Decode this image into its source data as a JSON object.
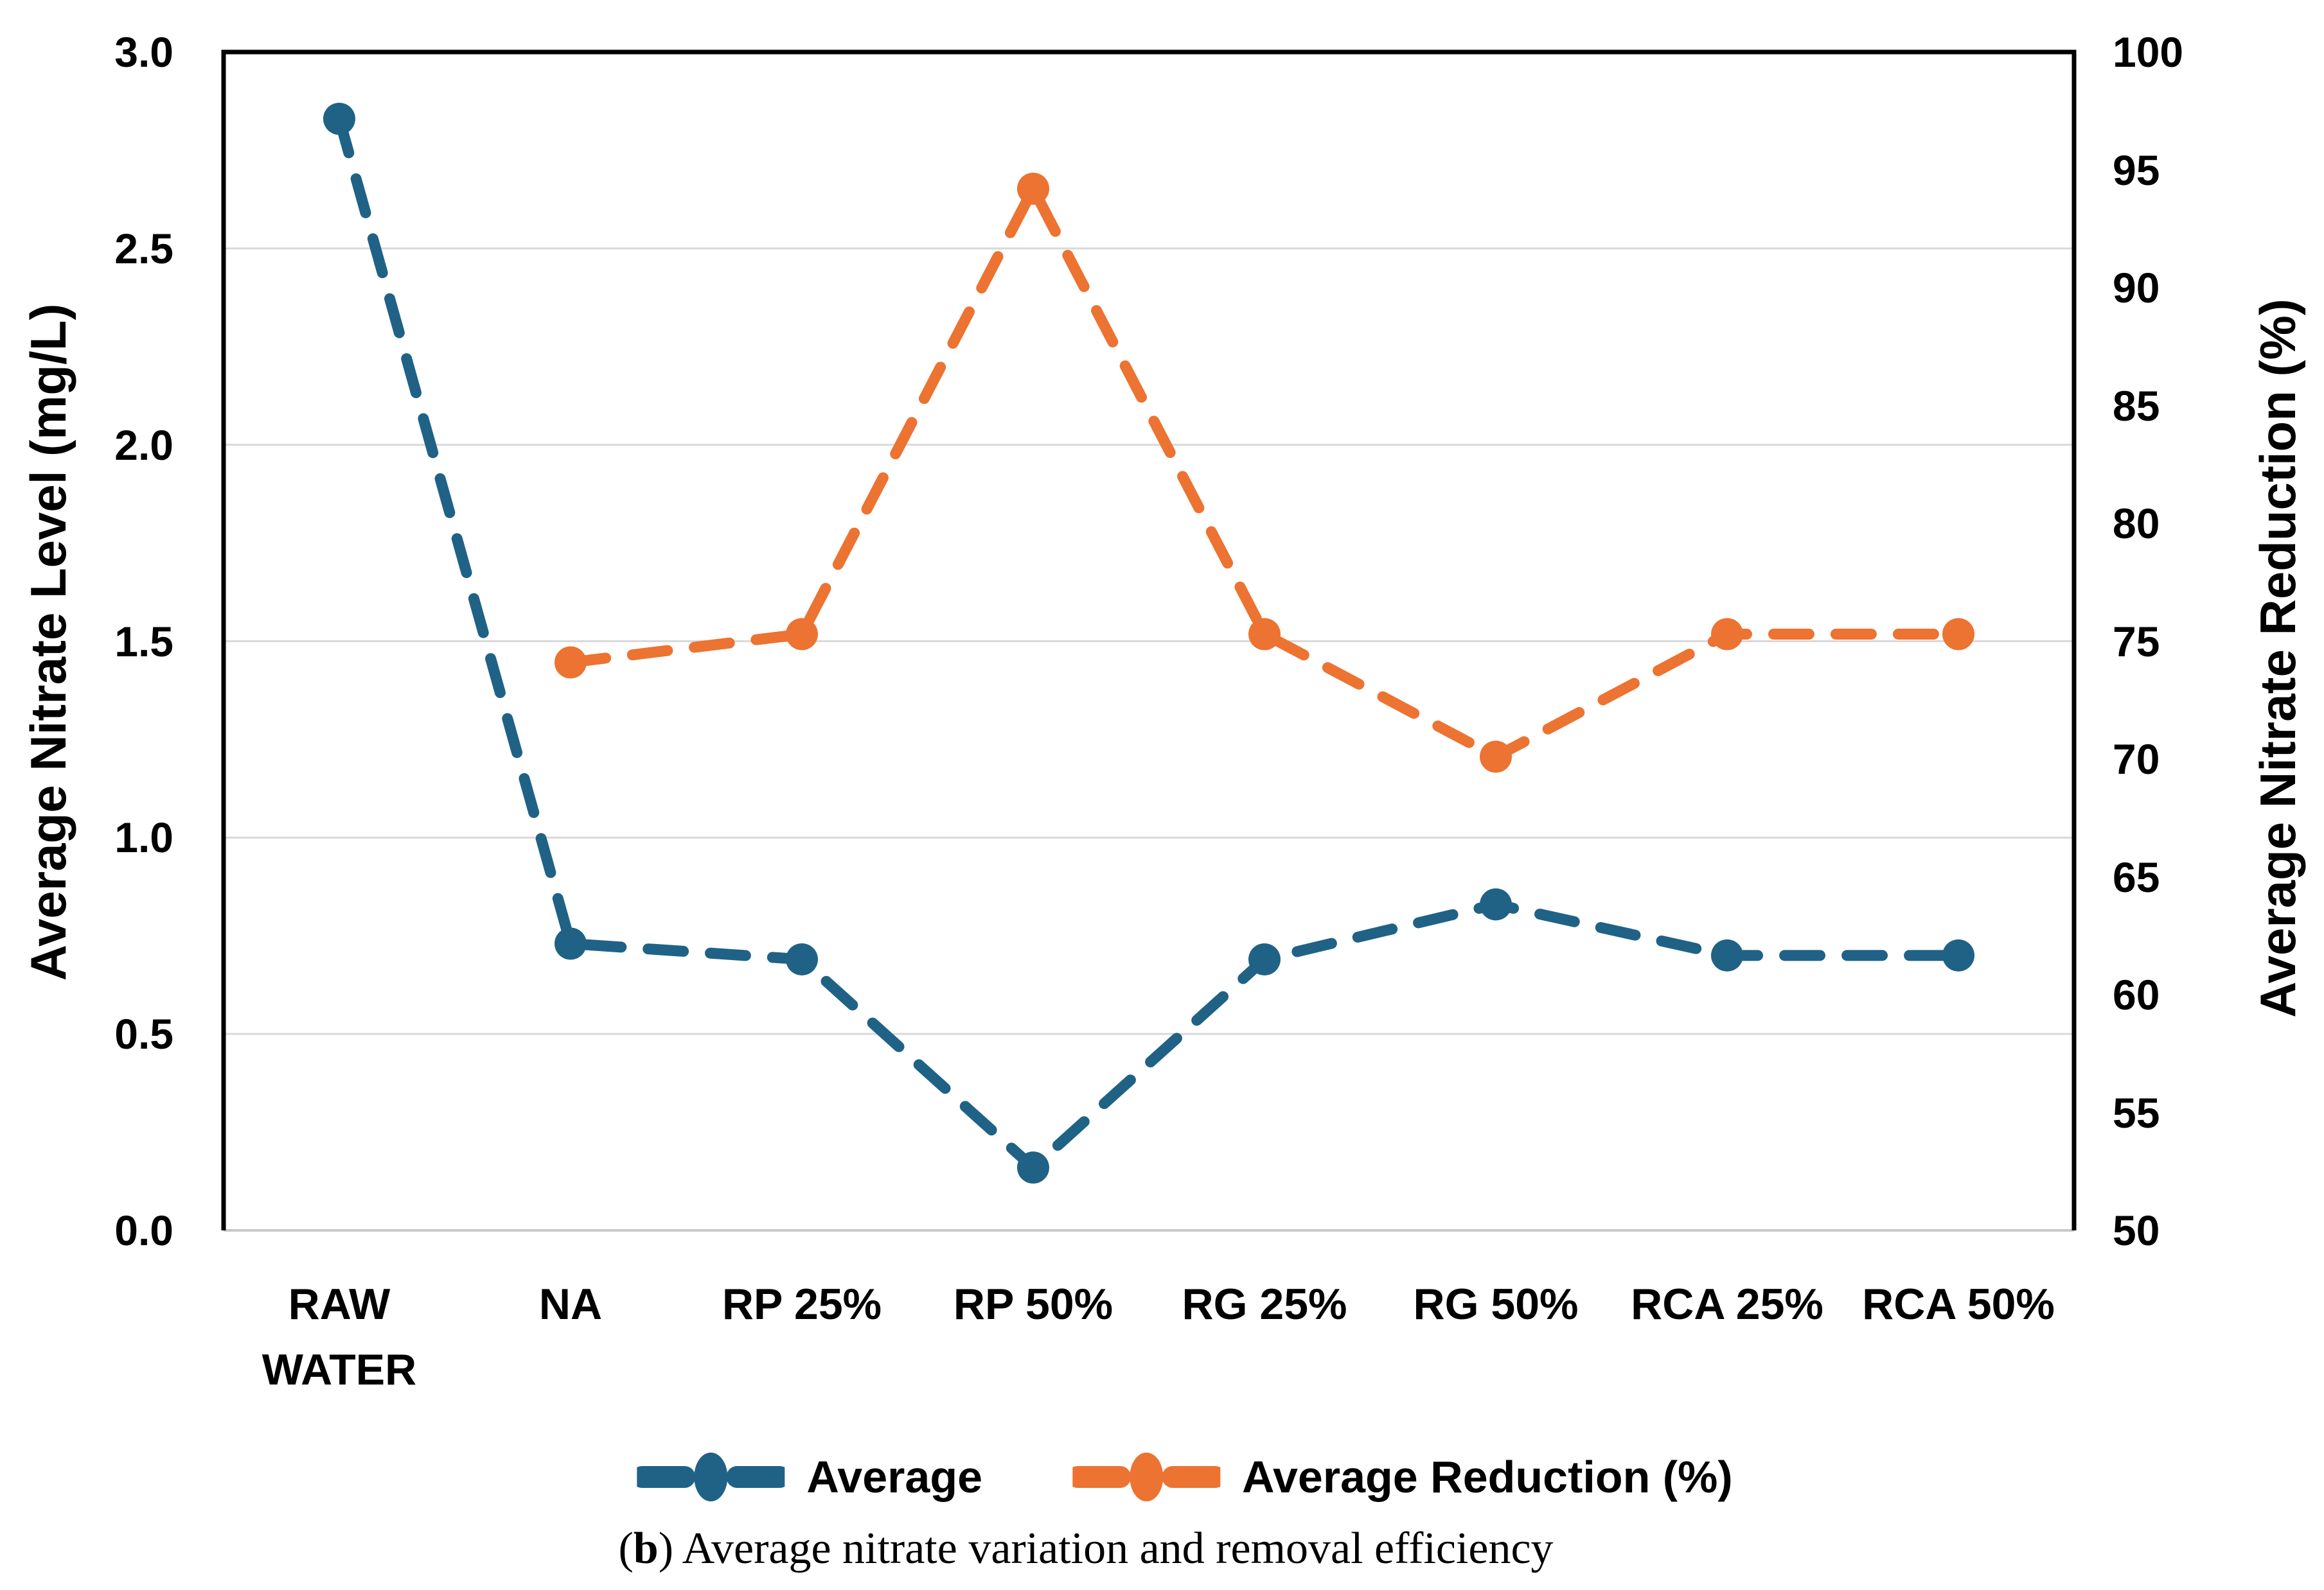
{
  "chart_data": {
    "type": "line",
    "title": "",
    "categories": [
      "RAW\nWATER",
      "NA",
      "RP 25%",
      "RP 50%",
      "RG 25%",
      "RG 50%",
      "RCA 25%",
      "RCA 50%"
    ],
    "series": [
      {
        "name": "Average",
        "axis": "left",
        "color": "#1F6286",
        "line_style": "dashed",
        "values": [
          2.83,
          0.73,
          0.69,
          0.16,
          0.69,
          0.83,
          0.7,
          0.7
        ]
      },
      {
        "name": "Average Reduction (%)",
        "axis": "right",
        "color": "#EC7331",
        "line_style": "dashed",
        "values": [
          null,
          74.1,
          75.3,
          94.2,
          75.3,
          70.1,
          75.3,
          75.3
        ]
      }
    ],
    "left_axis": {
      "title": "Average Nitrate Level (mg/L)",
      "min": 0,
      "max": 3,
      "step": 0.5,
      "tick_labels": [
        "3.0",
        "2.5",
        "2.0",
        "1.5",
        "1.0",
        "0.5",
        "0.0"
      ]
    },
    "right_axis": {
      "title": "Average Nitrate Reduction (%)",
      "min": 50,
      "max": 100,
      "step": 5,
      "tick_labels": [
        "100",
        "95",
        "90",
        "85",
        "80",
        "75",
        "70",
        "65",
        "60",
        "55",
        "50"
      ]
    },
    "grid": "horizontal gridlines at left-axis 0.5 intervals",
    "legend_position": "bottom-center",
    "caption": {
      "prefix": "(",
      "marker": "b",
      "rest": ") Average nitrate variation and removal efficiency"
    }
  }
}
